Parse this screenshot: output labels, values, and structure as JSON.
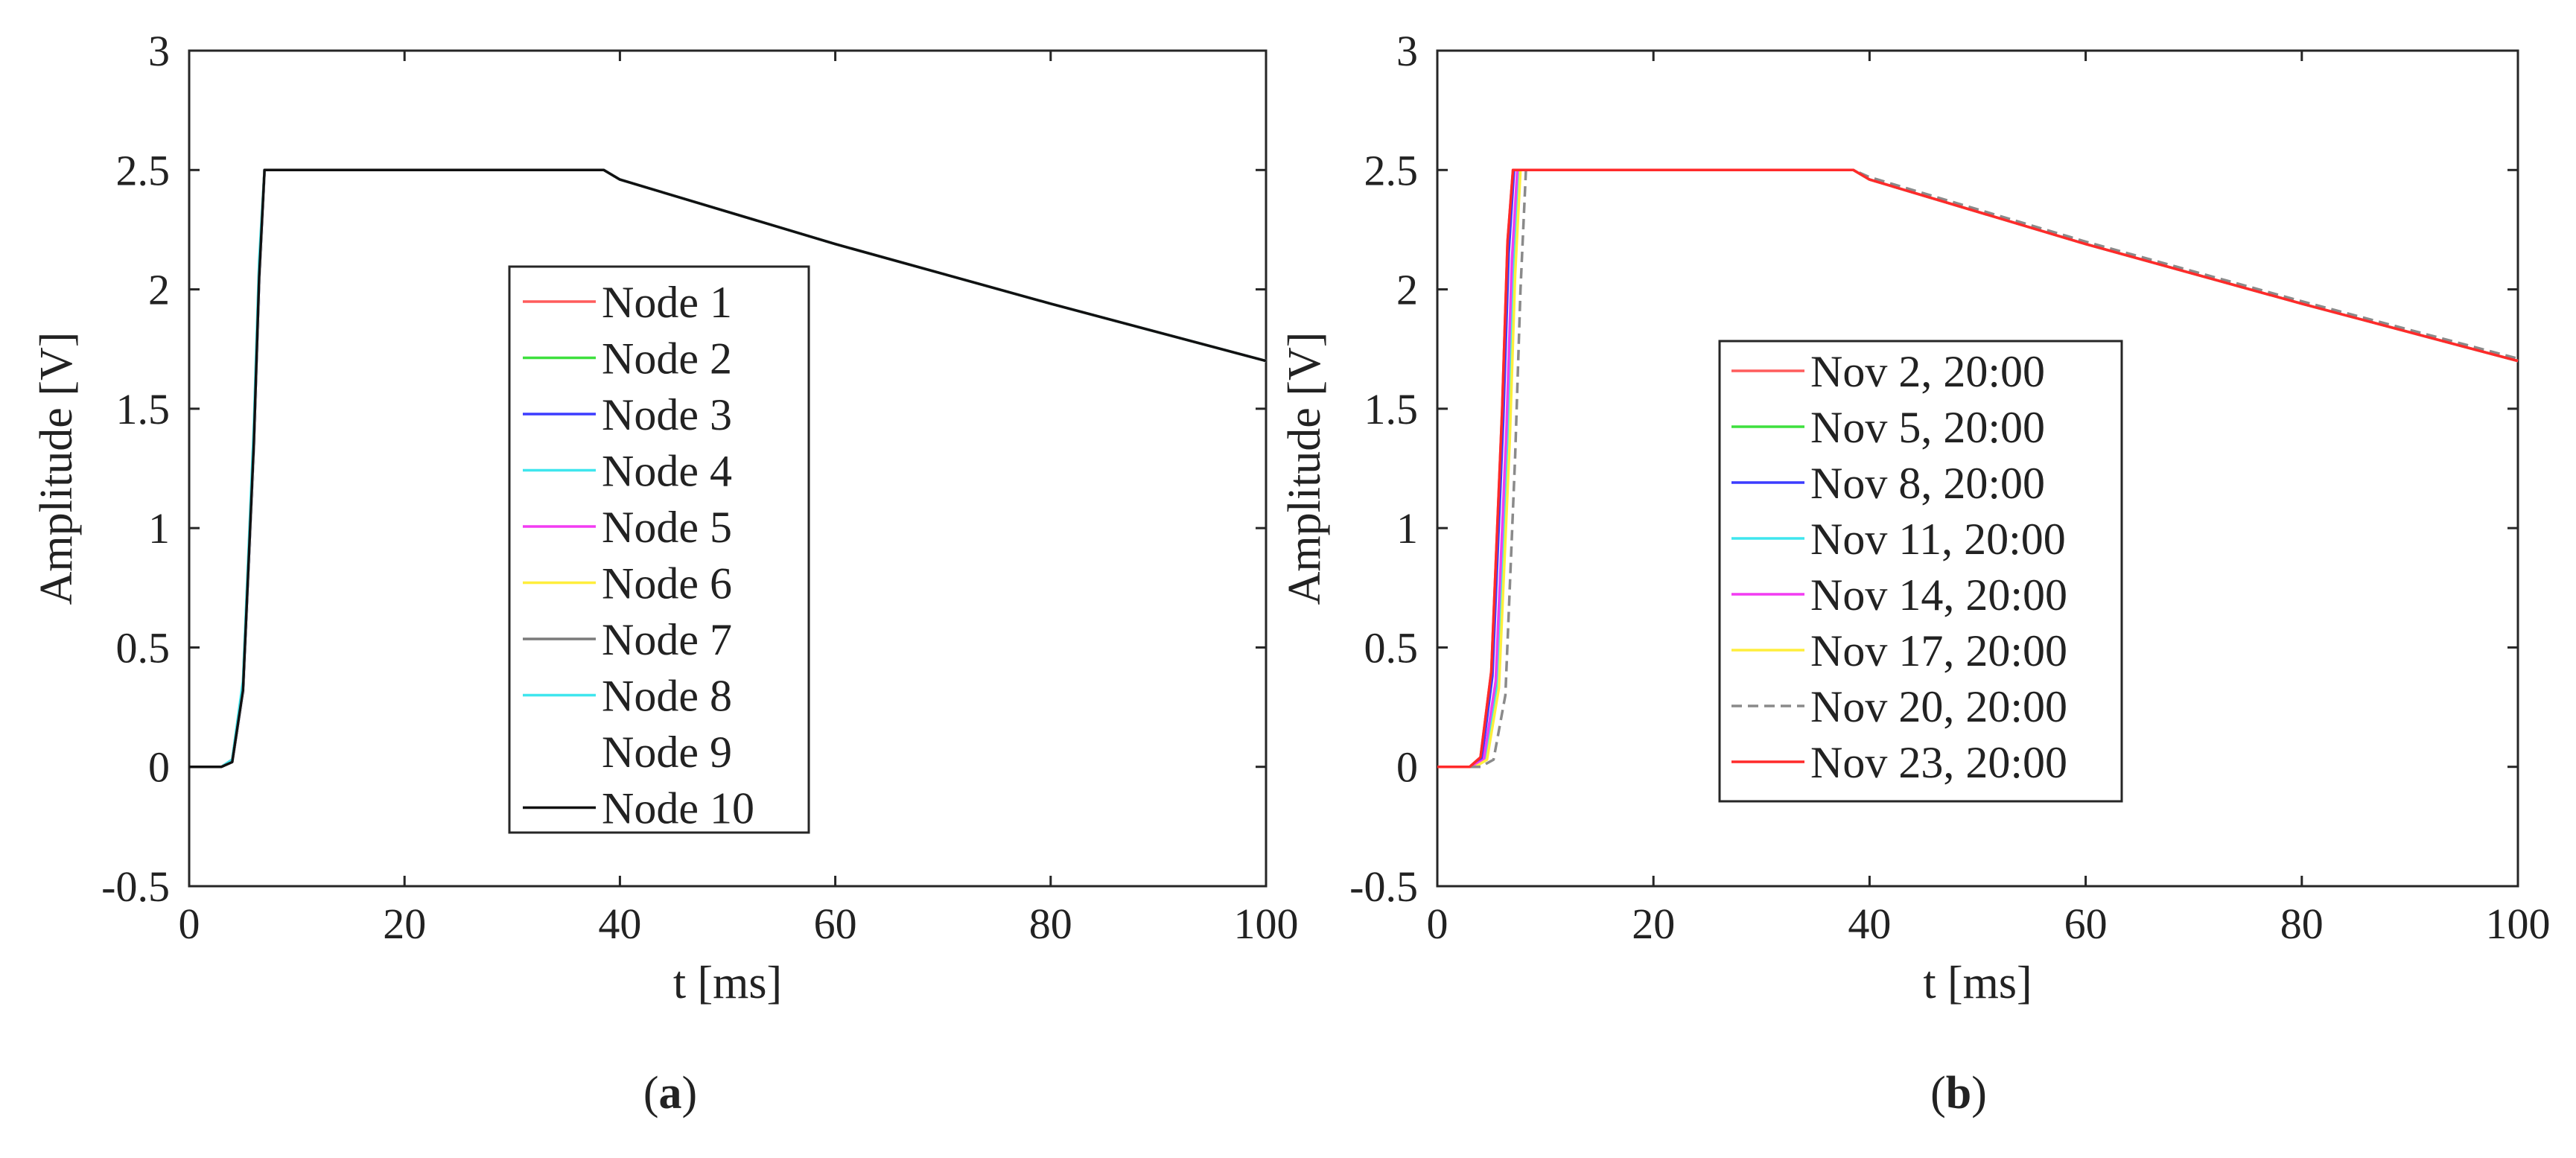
{
  "chart_data": [
    {
      "panel_label": "a",
      "type": "line",
      "xlabel": "t [ms]",
      "ylabel": "Amplitude [V]",
      "xlim": [
        0,
        100
      ],
      "ylim": [
        -0.5,
        3
      ],
      "xticks": [
        "0",
        "20",
        "40",
        "60",
        "80",
        "100"
      ],
      "yticks": [
        "-0.5",
        "0",
        "0.5",
        "1",
        "1.5",
        "2",
        "2.5",
        "3"
      ],
      "grid": false,
      "legend_position": "center",
      "series": [
        {
          "name": "Node 1",
          "color": "#ff5c5c",
          "dash": "",
          "x": [
            0,
            3,
            4,
            5,
            6,
            6.5,
            7,
            38.5,
            40,
            60,
            80,
            100
          ],
          "y": [
            0,
            0,
            0.03,
            0.35,
            1.4,
            2.1,
            2.5,
            2.5,
            2.46,
            2.19,
            1.94,
            1.7
          ]
        },
        {
          "name": "Node 2",
          "color": "#3ee03e",
          "dash": "",
          "x": [
            0,
            3,
            4,
            5,
            6,
            6.5,
            7,
            38.5,
            40,
            60,
            80,
            100
          ],
          "y": [
            0,
            0,
            0.02,
            0.32,
            1.35,
            2.05,
            2.5,
            2.5,
            2.46,
            2.19,
            1.94,
            1.7
          ]
        },
        {
          "name": "Node 3",
          "color": "#3c3cff",
          "dash": "",
          "x": [
            0,
            3,
            4,
            5,
            6,
            6.5,
            7,
            38.5,
            40,
            60,
            80,
            100
          ],
          "y": [
            0,
            0,
            0.02,
            0.3,
            1.3,
            2.0,
            2.5,
            2.5,
            2.46,
            2.19,
            1.94,
            1.7
          ]
        },
        {
          "name": "Node 4",
          "color": "#3fe6ee",
          "dash": "",
          "x": [
            0,
            3,
            4,
            5,
            6,
            6.5,
            7,
            38.5,
            40,
            60,
            80,
            100
          ],
          "y": [
            0,
            0,
            0.03,
            0.36,
            1.42,
            2.12,
            2.5,
            2.5,
            2.46,
            2.19,
            1.94,
            1.7
          ]
        },
        {
          "name": "Node 5",
          "color": "#f23cf2",
          "dash": "",
          "x": [
            0,
            3,
            4,
            5,
            6,
            6.5,
            7,
            38.5,
            40,
            60,
            80,
            100
          ],
          "y": [
            0,
            0,
            0.02,
            0.31,
            1.33,
            2.03,
            2.5,
            2.5,
            2.46,
            2.19,
            1.94,
            1.7
          ]
        },
        {
          "name": "Node 6",
          "color": "#ffee3c",
          "dash": "",
          "x": [
            0,
            3,
            4,
            5,
            6,
            6.5,
            7,
            38.5,
            40,
            60,
            80,
            100
          ],
          "y": [
            0,
            0,
            0.02,
            0.33,
            1.36,
            2.06,
            2.5,
            2.5,
            2.46,
            2.19,
            1.94,
            1.7
          ]
        },
        {
          "name": "Node 7",
          "color": "#7a7a7a",
          "dash": "",
          "x": [
            0,
            3,
            4,
            5,
            6,
            6.5,
            7,
            38.5,
            40,
            60,
            80,
            100
          ],
          "y": [
            0,
            0,
            0.02,
            0.3,
            1.3,
            2.0,
            2.5,
            2.5,
            2.46,
            2.19,
            1.94,
            1.7
          ]
        },
        {
          "name": "Node 8",
          "color": "#3fe6ee",
          "dash": "",
          "x": [
            0,
            3,
            4,
            5,
            6,
            6.5,
            7,
            38.5,
            40,
            60,
            80,
            100
          ],
          "y": [
            0,
            0,
            0.03,
            0.34,
            1.38,
            2.08,
            2.5,
            2.5,
            2.46,
            2.19,
            1.94,
            1.7
          ]
        },
        {
          "name": "Node 9",
          "color": "#ffffff",
          "dash": "",
          "x": [
            0,
            3,
            4,
            5,
            6,
            6.5,
            7,
            38.5,
            40,
            60,
            80,
            100
          ],
          "y": [
            0,
            0,
            0.02,
            0.3,
            1.3,
            2.0,
            2.5,
            2.5,
            2.46,
            2.19,
            1.94,
            1.7
          ]
        },
        {
          "name": "Node 10",
          "color": "#111111",
          "dash": "",
          "x": [
            0,
            3,
            4,
            5,
            6,
            6.5,
            7,
            38.5,
            40,
            60,
            80,
            100
          ],
          "y": [
            0,
            0,
            0.02,
            0.32,
            1.35,
            2.05,
            2.5,
            2.5,
            2.46,
            2.19,
            1.94,
            1.7
          ]
        }
      ]
    },
    {
      "panel_label": "b",
      "type": "line",
      "xlabel": "t [ms]",
      "ylabel": "Amplitude [V]",
      "xlim": [
        0,
        100
      ],
      "ylim": [
        -0.5,
        3
      ],
      "xticks": [
        "0",
        "20",
        "40",
        "60",
        "80",
        "100"
      ],
      "yticks": [
        "-0.5",
        "0",
        "0.5",
        "1",
        "1.5",
        "2",
        "2.5",
        "3"
      ],
      "grid": false,
      "legend_position": "center",
      "series": [
        {
          "name": "Nov 2, 20:00",
          "color": "#ff5c5c",
          "dash": "",
          "x": [
            0,
            3,
            4,
            5,
            6,
            6.5,
            7,
            38.5,
            40,
            60,
            80,
            100
          ],
          "y": [
            0,
            0,
            0.04,
            0.4,
            1.5,
            2.2,
            2.5,
            2.5,
            2.46,
            2.19,
            1.94,
            1.7
          ]
        },
        {
          "name": "Nov 5, 20:00",
          "color": "#3ee03e",
          "dash": "",
          "x": [
            0,
            3.3,
            4.4,
            5.5,
            6.5,
            7,
            7.5,
            38.5,
            40,
            60,
            80,
            100
          ],
          "y": [
            0,
            0,
            0.03,
            0.35,
            1.4,
            2.1,
            2.5,
            2.5,
            2.46,
            2.19,
            1.94,
            1.7
          ]
        },
        {
          "name": "Nov 8, 20:00",
          "color": "#3c3cff",
          "dash": "",
          "x": [
            0,
            3.1,
            4.1,
            5.1,
            6.1,
            6.6,
            7.1,
            38.5,
            40,
            60,
            80,
            100
          ],
          "y": [
            0,
            0,
            0.03,
            0.38,
            1.45,
            2.15,
            2.5,
            2.5,
            2.46,
            2.19,
            1.94,
            1.7
          ]
        },
        {
          "name": "Nov 11, 20:00",
          "color": "#3fe6ee",
          "dash": "",
          "x": [
            0,
            3.4,
            4.5,
            5.6,
            6.6,
            7.1,
            7.6,
            38.5,
            40,
            60,
            80,
            100
          ],
          "y": [
            0,
            0,
            0.03,
            0.34,
            1.38,
            2.08,
            2.5,
            2.5,
            2.46,
            2.19,
            1.94,
            1.7
          ]
        },
        {
          "name": "Nov 14, 20:00",
          "color": "#f23cf2",
          "dash": "",
          "x": [
            0,
            3.2,
            4.3,
            5.4,
            6.4,
            6.9,
            7.4,
            38.5,
            40,
            60,
            80,
            100
          ],
          "y": [
            0,
            0,
            0.03,
            0.36,
            1.42,
            2.12,
            2.5,
            2.5,
            2.46,
            2.19,
            1.94,
            1.7
          ]
        },
        {
          "name": "Nov 17, 20:00",
          "color": "#ffee3c",
          "dash": "",
          "x": [
            0,
            3.5,
            4.6,
            5.7,
            6.7,
            7.2,
            7.7,
            38.5,
            40,
            60,
            80,
            100
          ],
          "y": [
            0,
            0,
            0.03,
            0.33,
            1.36,
            2.06,
            2.5,
            2.5,
            2.46,
            2.19,
            1.94,
            1.7
          ]
        },
        {
          "name": "Nov 20, 20:00",
          "color": "#8a8a8a",
          "dash": "14,8",
          "x": [
            0,
            4,
            5.2,
            6.3,
            7.2,
            7.7,
            8.2,
            38.5,
            40,
            60,
            80,
            100
          ],
          "y": [
            0,
            0,
            0.03,
            0.3,
            1.3,
            2.0,
            2.5,
            2.5,
            2.47,
            2.2,
            1.95,
            1.71
          ]
        },
        {
          "name": "Nov 23, 20:00",
          "color": "#ff2a2a",
          "dash": "",
          "x": [
            0,
            3,
            4,
            5,
            6,
            6.5,
            7,
            38.5,
            40,
            60,
            80,
            100
          ],
          "y": [
            0,
            0,
            0.04,
            0.4,
            1.5,
            2.2,
            2.5,
            2.5,
            2.46,
            2.19,
            1.94,
            1.7
          ]
        }
      ]
    }
  ]
}
